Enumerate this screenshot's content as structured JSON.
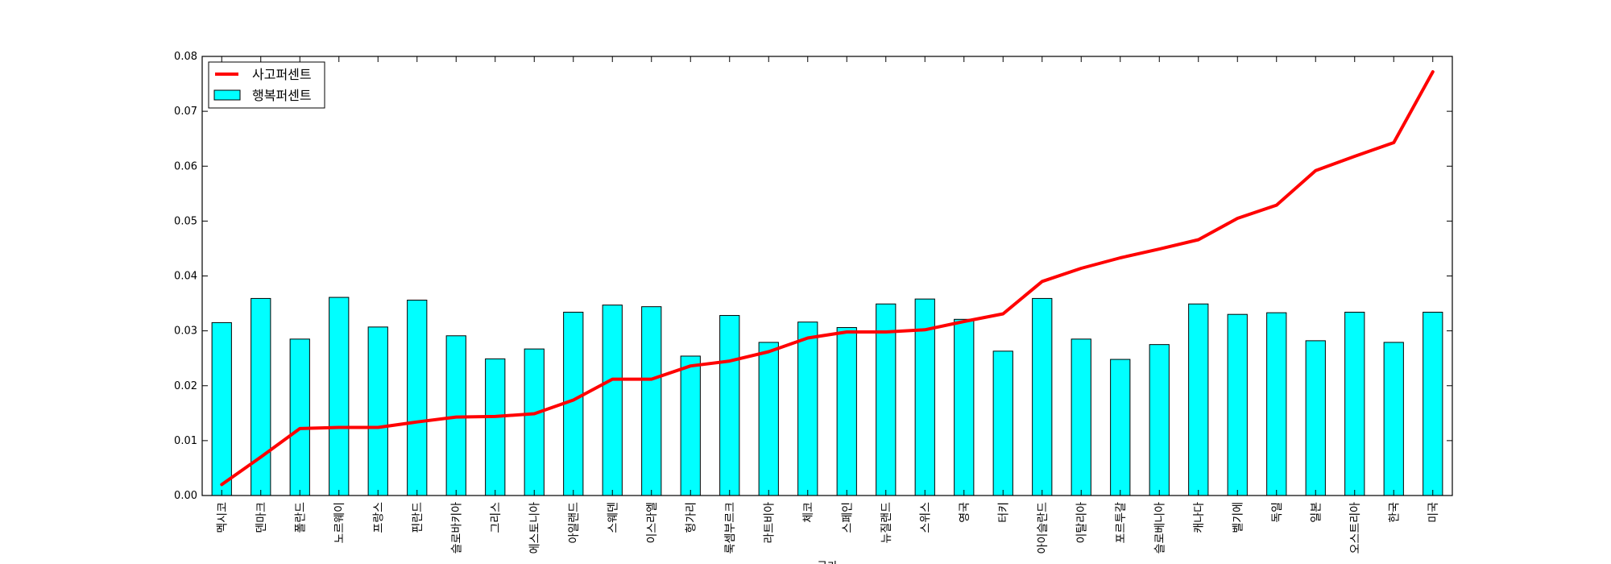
{
  "chart_data": {
    "type": "bar",
    "xlabel": "국가",
    "ylabel": "",
    "ylim": [
      0,
      0.08
    ],
    "yticks": [
      "0.00",
      "0.01",
      "0.02",
      "0.03",
      "0.04",
      "0.05",
      "0.06",
      "0.07",
      "0.08"
    ],
    "grid": false,
    "legend_position": "top-left",
    "categories": [
      "멕시코",
      "덴마크",
      "폴란드",
      "노르웨이",
      "프랑스",
      "핀란드",
      "슬로바키아",
      "그리스",
      "에스토니아",
      "아일랜드",
      "스웨덴",
      "이스라엘",
      "헝가리",
      "룩셈부르크",
      "라트비아",
      "체코",
      "스페인",
      "뉴질랜드",
      "스위스",
      "영국",
      "터키",
      "아이슬란드",
      "이탈리아",
      "포르투갈",
      "슬로베니아",
      "캐나다",
      "벨기에",
      "독일",
      "일본",
      "오스트리아",
      "한국",
      "미국"
    ],
    "series": [
      {
        "name": "행복퍼센트",
        "kind": "bar",
        "color": "#00ffff",
        "values": [
          0.0315,
          0.0359,
          0.0285,
          0.0361,
          0.0307,
          0.0356,
          0.0291,
          0.0249,
          0.0267,
          0.0334,
          0.0347,
          0.0344,
          0.0254,
          0.0328,
          0.0279,
          0.0316,
          0.0306,
          0.0349,
          0.0358,
          0.0321,
          0.0263,
          0.0359,
          0.0285,
          0.0248,
          0.0275,
          0.0349,
          0.033,
          0.0333,
          0.0282,
          0.0334,
          0.0279,
          0.0334
        ]
      },
      {
        "name": "사고퍼센트",
        "kind": "line",
        "color": "#ff0000",
        "values": [
          0.002,
          0.007,
          0.0122,
          0.0124,
          0.0124,
          0.0134,
          0.0143,
          0.0144,
          0.0149,
          0.0174,
          0.0212,
          0.0212,
          0.0236,
          0.0245,
          0.0262,
          0.0287,
          0.0298,
          0.0298,
          0.0302,
          0.0317,
          0.0331,
          0.039,
          0.0414,
          0.0433,
          0.0449,
          0.0466,
          0.0505,
          0.0529,
          0.0592,
          0.0618,
          0.0643,
          0.0772
        ]
      }
    ]
  }
}
